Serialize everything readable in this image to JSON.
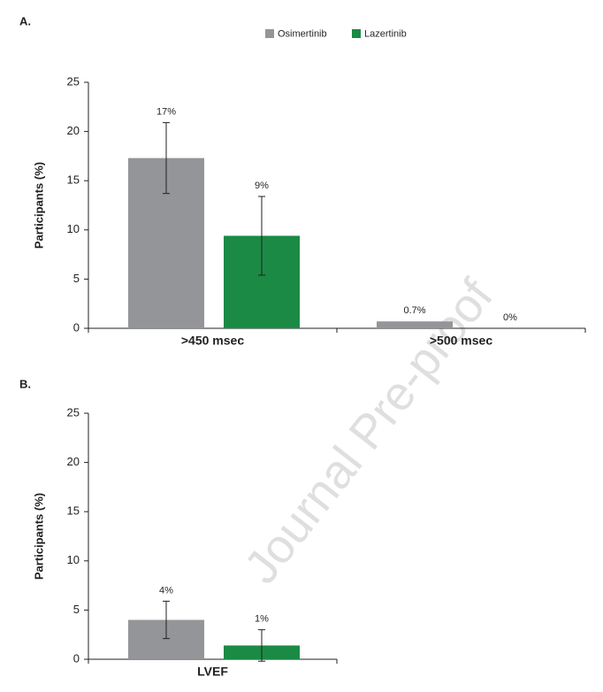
{
  "chart_data": [
    {
      "type": "bar",
      "title": "A.",
      "ylabel": "Participants (%)",
      "categories": [
        ">450 msec",
        ">500 msec"
      ],
      "series": [
        {
          "name": "Osimertinib",
          "color": "#939598",
          "values": [
            17.3,
            0.7
          ],
          "value_labels": [
            "17%",
            "0.7%"
          ],
          "errors": [
            3.6,
            null
          ]
        },
        {
          "name": "Lazertinib",
          "color": "#1b8a45",
          "values": [
            9.4,
            0
          ],
          "value_labels": [
            "9%",
            "0%"
          ],
          "errors": [
            4.0,
            null
          ]
        }
      ],
      "ylim": [
        0,
        25
      ],
      "yticks": [
        0,
        5,
        10,
        15,
        20,
        25
      ],
      "legend": "top"
    },
    {
      "type": "bar",
      "title": "B.",
      "ylabel": "Participants (%)",
      "categories": [
        "LVEF"
      ],
      "series": [
        {
          "color": "#939598",
          "values": [
            4.0
          ],
          "value_labels": [
            "4%"
          ],
          "errors": [
            1.9
          ]
        },
        {
          "color": "#1b8a45",
          "values": [
            1.4
          ],
          "value_labels": [
            "1%"
          ],
          "errors": [
            1.6
          ]
        }
      ],
      "ylim": [
        0,
        25
      ],
      "yticks": [
        0,
        5,
        10,
        15,
        20,
        25
      ]
    }
  ],
  "watermark": "Journal Pre-proof"
}
